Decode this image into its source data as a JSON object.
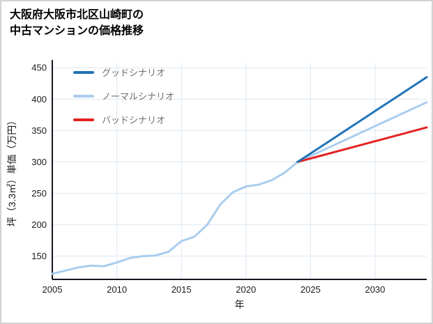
{
  "header": {
    "title_line1": "大阪府大阪市北区山崎町の",
    "title_line2": "中古マンションの価格推移"
  },
  "chart_data": {
    "type": "line",
    "title": "大阪府大阪市北区山崎町の中古マンションの価格推移",
    "xlabel": "年",
    "ylabel": "坪（3.3㎡）単価（万円）",
    "xlim": [
      2005,
      2034
    ],
    "ylim": [
      113,
      458
    ],
    "xticks": [
      2005,
      2010,
      2015,
      2020,
      2025,
      2030
    ],
    "yticks": [
      150,
      200,
      250,
      300,
      350,
      400,
      450
    ],
    "grid": true,
    "legend_position": "top-left",
    "style": {
      "grid_color": "#dde7f3",
      "axis_color": "#14161f",
      "background": "#ffffff",
      "border": "#d2d2d2",
      "legend_text": "#6e6e6e"
    },
    "series": [
      {
        "name": "グッドシナリオ",
        "color": "#2273b8",
        "z": 3,
        "width": 3,
        "x": [
          2024,
          2026,
          2028,
          2030,
          2032,
          2034
        ],
        "y": [
          300,
          327,
          354,
          381,
          408,
          435
        ]
      },
      {
        "name": "ノーマルシナリオ",
        "color": "#a9cdee",
        "z": 1,
        "width": 3,
        "x": [
          2005,
          2006,
          2007,
          2008,
          2009,
          2010,
          2011,
          2012,
          2013,
          2014,
          2015,
          2016,
          2017,
          2018,
          2019,
          2020,
          2021,
          2022,
          2023,
          2024,
          2026,
          2028,
          2030,
          2032,
          2034
        ],
        "y": [
          122,
          127,
          132,
          135,
          134,
          140,
          147,
          150,
          151,
          157,
          174,
          181,
          200,
          232,
          252,
          261,
          264,
          271,
          283,
          300,
          319,
          338,
          357,
          376,
          395
        ]
      },
      {
        "name": "バッドシナリオ",
        "color": "#e32222",
        "z": 2,
        "width": 3,
        "x": [
          2024,
          2026,
          2028,
          2030,
          2032,
          2034
        ],
        "y": [
          300,
          311,
          322,
          333,
          344,
          355
        ]
      }
    ]
  }
}
